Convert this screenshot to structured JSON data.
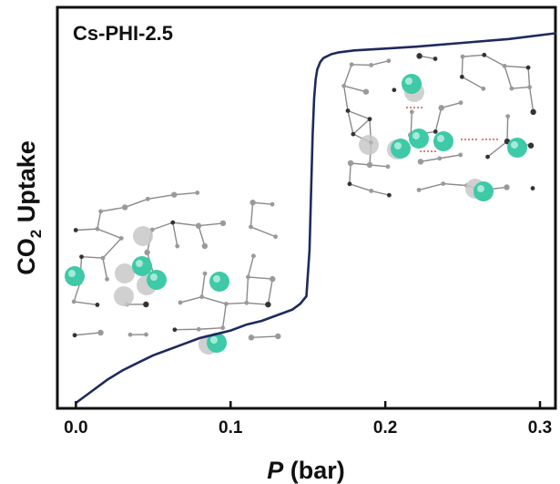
{
  "chart_data": {
    "type": "line",
    "title": "",
    "panel_label": "Cs-PHI-2.5",
    "xlabel": {
      "symbol": "P",
      "unit": " (bar)"
    },
    "ylabel": {
      "prefix": "CO",
      "subscript": "2",
      "suffix": " Uptake"
    },
    "xlim": [
      -0.012,
      0.31
    ],
    "ylim": [
      0,
      1
    ],
    "y_ticks_shown": false,
    "grid": false,
    "x_ticks": [
      {
        "value": 0.0,
        "label": "0.0"
      },
      {
        "value": 0.1,
        "label": "0.1"
      },
      {
        "value": 0.2,
        "label": "0.2"
      },
      {
        "value": 0.3,
        "label": "0.3"
      }
    ],
    "line_color": "#1f2a5c",
    "series": [
      {
        "name": "",
        "x": [
          0.0,
          0.01,
          0.02,
          0.03,
          0.04,
          0.05,
          0.06,
          0.07,
          0.08,
          0.09,
          0.1,
          0.11,
          0.12,
          0.13,
          0.14,
          0.145,
          0.149,
          0.151,
          0.152,
          0.153,
          0.154,
          0.155,
          0.156,
          0.158,
          0.16,
          0.165,
          0.17,
          0.18,
          0.2,
          0.22,
          0.25,
          0.28,
          0.31
        ],
        "y": [
          0.0,
          0.03,
          0.06,
          0.085,
          0.105,
          0.125,
          0.14,
          0.155,
          0.17,
          0.18,
          0.19,
          0.205,
          0.215,
          0.23,
          0.245,
          0.26,
          0.28,
          0.4,
          0.55,
          0.7,
          0.8,
          0.85,
          0.875,
          0.895,
          0.905,
          0.915,
          0.92,
          0.925,
          0.93,
          0.935,
          0.945,
          0.955,
          0.97
        ]
      }
    ],
    "insets": [
      {
        "label": "framework-structure-low-pressure",
        "atoms": "cs-ions-grey-and-teal"
      },
      {
        "label": "framework-structure-high-pressure",
        "atoms": "cs-ions-grey-and-teal-with-co2"
      }
    ],
    "colors": {
      "teal_atom": "#3ec9a7",
      "grey_atom": "#c8c8c8",
      "framework": "#8a8a8a",
      "co2_oxygen": "#d9534f"
    }
  }
}
